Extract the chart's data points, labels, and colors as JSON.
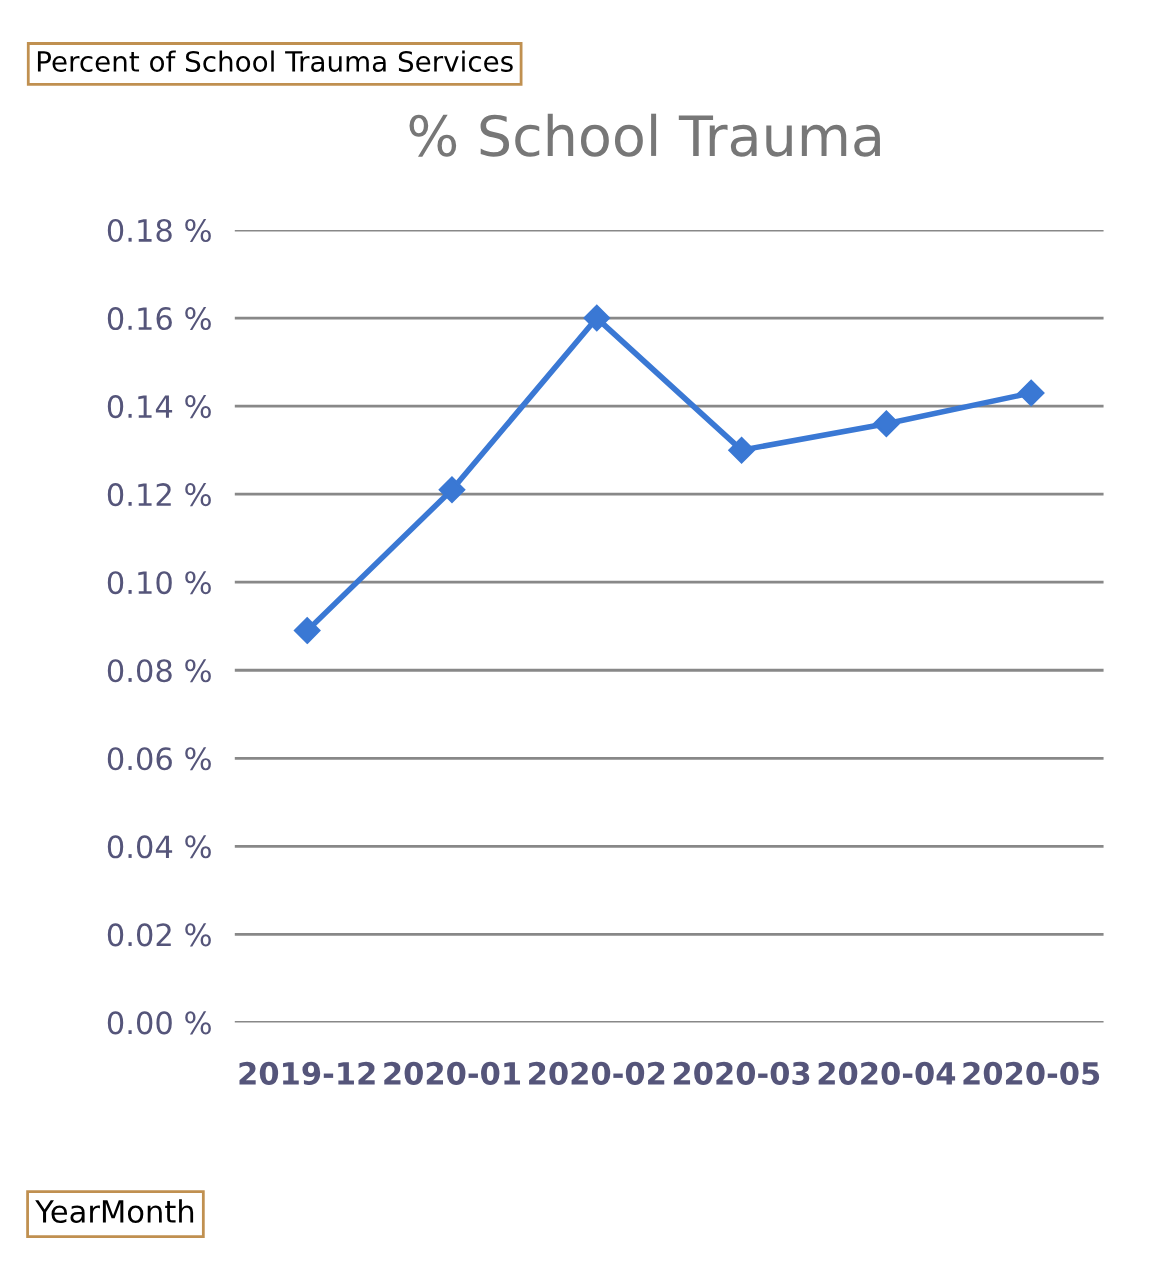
{
  "chart_data": {
    "type": "line",
    "title": "% School Trauma",
    "categories": [
      "2019-12",
      "2020-01",
      "2020-02",
      "2020-03",
      "2020-04",
      "2020-05"
    ],
    "series": [
      {
        "color": "#3a78d4",
        "values": [
          0.089,
          0.121,
          0.16,
          0.13,
          0.136,
          0.143
        ]
      }
    ],
    "ylim": [
      0,
      0.18
    ],
    "yticks": [
      {
        "value": 0,
        "label": "0.00 %"
      },
      {
        "value": 0.02,
        "label": "0.02 %"
      },
      {
        "value": 0.04,
        "label": "0.04 %"
      },
      {
        "value": 0.06,
        "label": "0.06 %"
      },
      {
        "value": 0.08,
        "label": "0.08 %"
      },
      {
        "value": 0.1,
        "label": "0.10 %"
      },
      {
        "value": 0.12,
        "label": "0.12 %"
      },
      {
        "value": 0.14,
        "label": "0.14 %"
      },
      {
        "value": 0.16,
        "label": "0.16 %"
      },
      {
        "value": 0.18,
        "label": "0.18 %"
      }
    ],
    "grid": "y",
    "marker": "diamond",
    "line_style": "solid",
    "annotations": [
      "Percent of School Trauma Services",
      "YearMonth"
    ]
  }
}
